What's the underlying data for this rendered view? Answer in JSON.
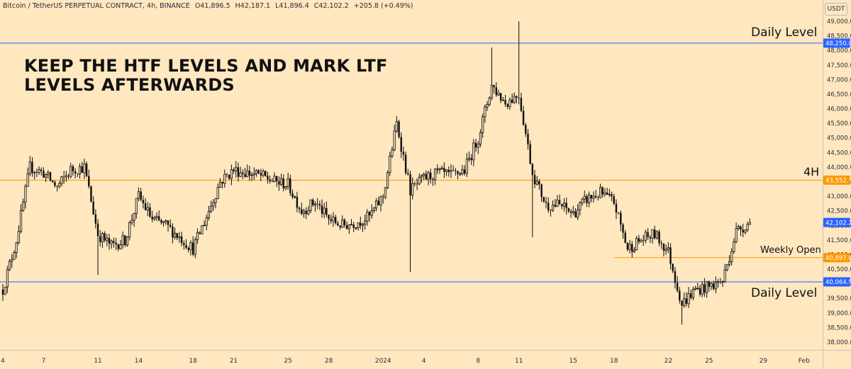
{
  "header": {
    "symbol": "Bitcoin / TetherUS PERPETUAL CONTRACT, 4h, BINANCE",
    "open": "O41,896.5",
    "high": "H42,187.1",
    "low": "L41,896.4",
    "close": "C42,102.2",
    "change": "+205.8 (+0.49%)"
  },
  "unit_label": "USDT",
  "overlay_title": "KEEP THE HTF LEVELS AND MARK LTF LEVELS AFTERWARDS",
  "colors": {
    "background": "#ffe7bf",
    "daily_line": "#2962ff",
    "htf_line": "#ff9800",
    "candle": "#0d0d0d"
  },
  "chart_data": {
    "type": "candlestick",
    "title": "",
    "xlabel": "",
    "ylabel": "",
    "ylim": [
      37600,
      49400
    ],
    "grid": false,
    "y_ticks": [
      38000,
      38500,
      39000,
      39500,
      40000,
      40500,
      41000,
      41500,
      42000,
      42500,
      43000,
      43500,
      44000,
      44500,
      45000,
      45500,
      46000,
      46500,
      47000,
      47500,
      48000,
      48500,
      49000
    ],
    "y_tick_labels": [
      "38,000.0",
      "38,500.0",
      "39,000.0",
      "39,500.0",
      "40,000.0",
      "40,500.0",
      "41,000.0",
      "41,500.0",
      "42,000.0",
      "42,500.0",
      "43,000.0",
      "43,500.0",
      "44,000.0",
      "44,500.0",
      "45,000.0",
      "45,500.0",
      "46,000.0",
      "46,500.0",
      "47,000.0",
      "47,500.0",
      "48,000.0",
      "48,500.0",
      "49,000.0"
    ],
    "x_ticks": [
      {
        "label": "4",
        "date": "2023-12-04"
      },
      {
        "label": "7",
        "date": "2023-12-07"
      },
      {
        "label": "11",
        "date": "2023-12-11"
      },
      {
        "label": "14",
        "date": "2023-12-14"
      },
      {
        "label": "18",
        "date": "2023-12-18"
      },
      {
        "label": "21",
        "date": "2023-12-21"
      },
      {
        "label": "25",
        "date": "2023-12-25"
      },
      {
        "label": "28",
        "date": "2023-12-28"
      },
      {
        "label": "2024",
        "date": "2024-01-01"
      },
      {
        "label": "4",
        "date": "2024-01-04"
      },
      {
        "label": "8",
        "date": "2024-01-08"
      },
      {
        "label": "11",
        "date": "2024-01-11"
      },
      {
        "label": "15",
        "date": "2024-01-15"
      },
      {
        "label": "18",
        "date": "2024-01-18"
      },
      {
        "label": "22",
        "date": "2024-01-22"
      },
      {
        "label": "25",
        "date": "2024-01-25"
      },
      {
        "label": "29",
        "date": "2024-01-29"
      },
      {
        "label": "Feb",
        "date": "2024-02-01"
      }
    ],
    "levels": [
      {
        "name": "Daily Level",
        "value": 48250.0,
        "value_label": "48,250.0",
        "color": "#2962ff",
        "label_pos": "above-right"
      },
      {
        "name": "4H",
        "value": 43552.7,
        "value_label": "43,552.7",
        "color": "#ff9800",
        "label_pos": "above-right"
      },
      {
        "name": "Weekly Open",
        "value": 40897.0,
        "value_label": "40,897.0",
        "color": "#ff9800",
        "label_pos": "above-right",
        "start_date": "2024-01-18"
      },
      {
        "name": "Daily Level",
        "value": 40064.9,
        "value_label": "40,064.9",
        "color": "#2962ff",
        "label_pos": "below-right"
      }
    ],
    "last_price": {
      "value": 42102.2,
      "label": "42,102.2",
      "color": "#2962ff"
    },
    "price_path": [
      {
        "date": "2023-12-04",
        "price": 39800
      },
      {
        "date": "2023-12-05",
        "price": 41500
      },
      {
        "date": "2023-12-06",
        "price": 44000
      },
      {
        "date": "2023-12-07",
        "price": 43800
      },
      {
        "date": "2023-12-08",
        "price": 43300
      },
      {
        "date": "2023-12-09",
        "price": 43900
      },
      {
        "date": "2023-12-10",
        "price": 44000
      },
      {
        "date": "2023-12-11",
        "price": 41700
      },
      {
        "date": "2023-12-12",
        "price": 41300
      },
      {
        "date": "2023-12-13",
        "price": 41500
      },
      {
        "date": "2023-12-14",
        "price": 43000
      },
      {
        "date": "2023-12-15",
        "price": 42200
      },
      {
        "date": "2023-12-16",
        "price": 42000
      },
      {
        "date": "2023-12-17",
        "price": 41600
      },
      {
        "date": "2023-12-18",
        "price": 41200
      },
      {
        "date": "2023-12-19",
        "price": 42300
      },
      {
        "date": "2023-12-20",
        "price": 43500
      },
      {
        "date": "2023-12-21",
        "price": 43900
      },
      {
        "date": "2023-12-22",
        "price": 43800
      },
      {
        "date": "2023-12-23",
        "price": 43700
      },
      {
        "date": "2023-12-24",
        "price": 43500
      },
      {
        "date": "2023-12-25",
        "price": 43400
      },
      {
        "date": "2023-12-26",
        "price": 42500
      },
      {
        "date": "2023-12-27",
        "price": 42800
      },
      {
        "date": "2023-12-28",
        "price": 42200
      },
      {
        "date": "2023-12-29",
        "price": 42000
      },
      {
        "date": "2023-12-30",
        "price": 42100
      },
      {
        "date": "2023-12-31",
        "price": 42300
      },
      {
        "date": "2024-01-01",
        "price": 43000
      },
      {
        "date": "2024-01-02",
        "price": 45500
      },
      {
        "date": "2024-01-03",
        "price": 43200
      },
      {
        "date": "2024-01-04",
        "price": 43600
      },
      {
        "date": "2024-01-05",
        "price": 43800
      },
      {
        "date": "2024-01-06",
        "price": 43700
      },
      {
        "date": "2024-01-07",
        "price": 43900
      },
      {
        "date": "2024-01-08",
        "price": 45000
      },
      {
        "date": "2024-01-09",
        "price": 46800
      },
      {
        "date": "2024-01-10",
        "price": 46200
      },
      {
        "date": "2024-01-11",
        "price": 46500
      },
      {
        "date": "2024-01-12",
        "price": 43800
      },
      {
        "date": "2024-01-13",
        "price": 42700
      },
      {
        "date": "2024-01-14",
        "price": 42700
      },
      {
        "date": "2024-01-15",
        "price": 42400
      },
      {
        "date": "2024-01-16",
        "price": 42900
      },
      {
        "date": "2024-01-17",
        "price": 43100
      },
      {
        "date": "2024-01-18",
        "price": 42800
      },
      {
        "date": "2024-01-19",
        "price": 41200
      },
      {
        "date": "2024-01-20",
        "price": 41500
      },
      {
        "date": "2024-01-21",
        "price": 41700
      },
      {
        "date": "2024-01-22",
        "price": 41100
      },
      {
        "date": "2024-01-23",
        "price": 39300
      },
      {
        "date": "2024-01-24",
        "price": 39800
      },
      {
        "date": "2024-01-25",
        "price": 39900
      },
      {
        "date": "2024-01-26",
        "price": 40100
      },
      {
        "date": "2024-01-27",
        "price": 41800
      },
      {
        "date": "2024-01-28",
        "price": 42102.2
      }
    ],
    "notable_wicks": [
      {
        "date": "2024-01-03",
        "low": 40400
      },
      {
        "date": "2024-01-11",
        "high": 49000
      },
      {
        "date": "2024-01-09",
        "high": 48100
      },
      {
        "date": "2024-01-23",
        "low": 38600
      },
      {
        "date": "2023-12-11",
        "low": 40300
      },
      {
        "date": "2024-01-12",
        "low": 41600
      }
    ]
  }
}
